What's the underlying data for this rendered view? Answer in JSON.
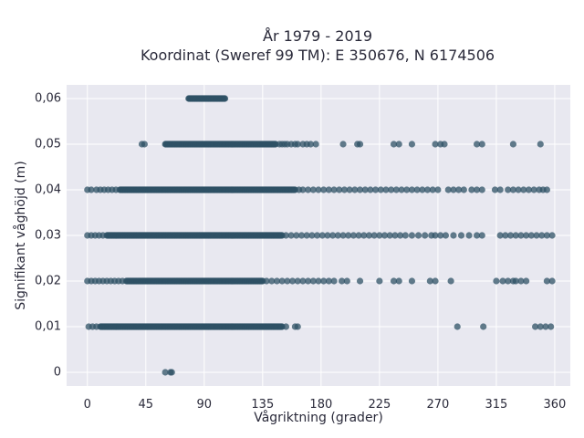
{
  "chart_data": {
    "type": "scatter",
    "title": "År 1979 - 2019",
    "subtitle": "Koordinat (Sweref 99 TM): E 350676, N 6174506",
    "xlabel": "Vågriktning (grader)",
    "ylabel": "Signifikant våghöjd (m)",
    "xlim": [
      -16,
      372
    ],
    "ylim": [
      -0.003,
      0.063
    ],
    "xticks": [
      0,
      45,
      90,
      135,
      180,
      225,
      270,
      315,
      360
    ],
    "xtick_labels": [
      "0",
      "45",
      "90",
      "135",
      "180",
      "225",
      "270",
      "315",
      "360"
    ],
    "yticks": [
      0,
      0.01,
      0.02,
      0.03,
      0.04,
      0.05,
      0.06
    ],
    "ytick_labels": [
      "0",
      "0,01",
      "0,02",
      "0,03",
      "0,04",
      "0,05",
      "0,06"
    ],
    "grid": true,
    "marker_color": "#2f5166",
    "plot_background": "#e8e8f0",
    "series": [
      {
        "bands": [
          {
            "y": 0.06,
            "dense": [
              [
                78,
                106
              ]
            ],
            "sparse": []
          },
          {
            "y": 0.05,
            "dense": [
              [
                60,
                145
              ]
            ],
            "sparse": [
              42,
              44,
              148,
              150,
              152,
              154,
              157,
              160,
              162,
              166,
              169,
              172,
              176,
              197,
              208,
              210,
              236,
              240,
              250,
              268,
              272,
              275,
              300,
              304,
              328,
              349
            ]
          },
          {
            "y": 0.04,
            "dense": [
              [
                25,
                160
              ]
            ],
            "sparse": [
              0,
              3,
              7,
              10,
              13,
              16,
              19,
              22,
              163,
              166,
              170,
              174,
              178,
              182,
              186,
              190,
              194,
              198,
              202,
              206,
              210,
              214,
              218,
              222,
              226,
              230,
              234,
              238,
              242,
              246,
              250,
              254,
              258,
              262,
              266,
              270,
              278,
              282,
              286,
              290,
              296,
              300,
              304,
              314,
              318,
              324,
              328,
              332,
              336,
              340,
              344,
              348,
              351,
              354
            ]
          },
          {
            "y": 0.03,
            "dense": [
              [
                15,
                150
              ]
            ],
            "sparse": [
              0,
              3,
              6,
              9,
              12,
              153,
              157,
              161,
              165,
              169,
              173,
              177,
              181,
              185,
              189,
              193,
              197,
              201,
              205,
              209,
              213,
              217,
              221,
              225,
              229,
              233,
              237,
              241,
              245,
              250,
              255,
              260,
              265,
              268,
              272,
              276,
              282,
              288,
              294,
              300,
              304,
              318,
              322,
              326,
              330,
              334,
              338,
              342,
              346,
              350,
              354,
              358
            ]
          },
          {
            "y": 0.02,
            "dense": [
              [
                30,
                135
              ]
            ],
            "sparse": [
              0,
              3,
              6,
              9,
              12,
              15,
              18,
              21,
              24,
              27,
              138,
              142,
              146,
              150,
              154,
              158,
              162,
              166,
              170,
              174,
              178,
              182,
              186,
              190,
              196,
              200,
              210,
              225,
              236,
              240,
              250,
              264,
              268,
              280,
              315,
              320,
              324,
              328,
              330,
              334,
              338,
              354,
              358
            ]
          },
          {
            "y": 0.01,
            "dense": [
              [
                10,
                150
              ]
            ],
            "sparse": [
              1,
              4,
              7,
              153,
              160,
              162,
              285,
              305,
              345,
              349,
              353,
              357
            ]
          },
          {
            "y": 0.0,
            "dense": [],
            "sparse": [
              60,
              64,
              65
            ]
          }
        ]
      }
    ]
  }
}
